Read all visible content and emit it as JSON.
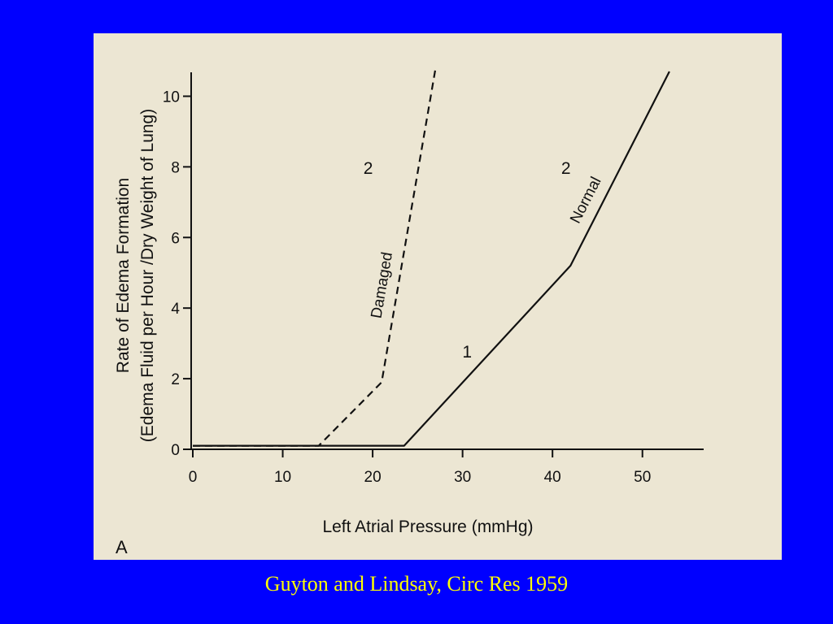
{
  "slide": {
    "caption": "Guyton and Lindsay, Circ Res 1959",
    "caption_color": "#ffff00",
    "background_color": "#0000ff"
  },
  "chart_data": {
    "type": "line",
    "panel_label": "A",
    "xlabel": "Left Atrial Pressure (mmHg)",
    "ylabel_line1": "Rate of Edema Formation",
    "ylabel_line2": "(Edema Fluid per Hour /Dry Weight of Lung)",
    "xlim": [
      0,
      55
    ],
    "ylim": [
      0,
      11
    ],
    "x_ticks": [
      0,
      10,
      20,
      30,
      40,
      50
    ],
    "y_ticks": [
      0,
      2,
      4,
      6,
      8,
      10
    ],
    "grid": false,
    "series": [
      {
        "name": "Damaged",
        "style": "dashed",
        "x": [
          0,
          14,
          21,
          27
        ],
        "y": [
          0.1,
          0.1,
          1.9,
          10.8
        ]
      },
      {
        "name": "Normal",
        "style": "solid",
        "x": [
          0,
          23.5,
          42,
          53
        ],
        "y": [
          0.1,
          0.1,
          5.2,
          10.7
        ]
      }
    ],
    "annotations": [
      {
        "text": "1",
        "x": 30.5,
        "y": 2.6
      },
      {
        "text": "2",
        "x": 19.5,
        "y": 7.8
      },
      {
        "text": "2",
        "x": 41.5,
        "y": 7.8
      }
    ]
  }
}
